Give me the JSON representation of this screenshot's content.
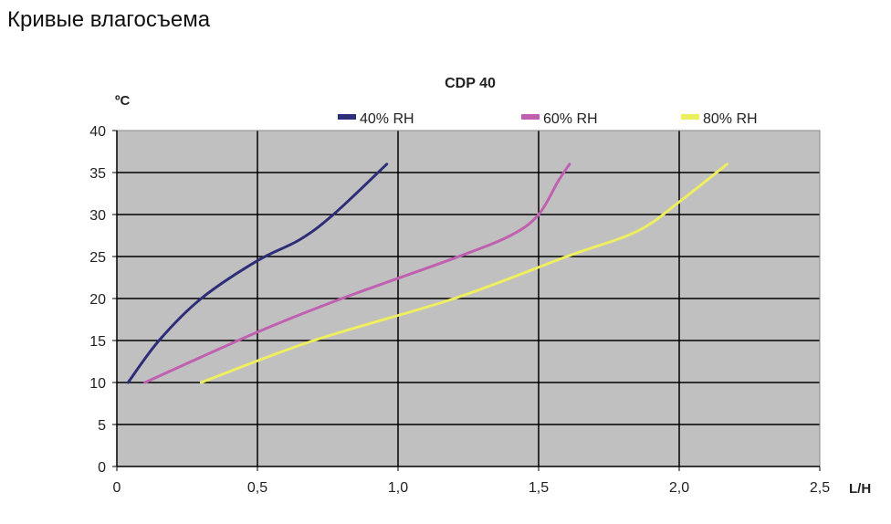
{
  "page": {
    "heading": "Кривые влагосъема"
  },
  "chart_data": {
    "type": "line",
    "title": "CDP 40",
    "xlabel": "L/H",
    "ylabel": "ºC",
    "xlim": [
      0,
      2.5
    ],
    "ylim": [
      0,
      40
    ],
    "x_ticks": [
      "0",
      "0,5",
      "1,0",
      "1,5",
      "2,0",
      "2,5"
    ],
    "x_tick_values": [
      0,
      0.5,
      1.0,
      1.5,
      2.0,
      2.5
    ],
    "y_ticks": [
      "0",
      "5",
      "10",
      "15",
      "20",
      "25",
      "30",
      "35",
      "40"
    ],
    "y_tick_values": [
      0,
      5,
      10,
      15,
      20,
      25,
      30,
      35,
      40
    ],
    "grid": true,
    "legend_position": "top",
    "plot_background": "#c0c0c0",
    "series": [
      {
        "name": "40% RH",
        "color": "#2e2e78",
        "x": [
          0.04,
          0.15,
          0.3,
          0.5,
          0.65,
          0.77,
          0.96
        ],
        "y": [
          10,
          15,
          20,
          24.5,
          27,
          30,
          36
        ]
      },
      {
        "name": "60% RH",
        "color": "#c060b0",
        "x": [
          0.1,
          0.5,
          0.8,
          1.2,
          1.4,
          1.5,
          1.57,
          1.61
        ],
        "y": [
          10,
          16,
          20,
          24.8,
          27.5,
          30,
          34,
          36
        ]
      },
      {
        "name": "80% RH",
        "color": "#eeee60",
        "x": [
          0.3,
          0.7,
          1.2,
          1.6,
          1.85,
          2.0,
          2.17
        ],
        "y": [
          10,
          15,
          20,
          25,
          28,
          31.5,
          36
        ]
      }
    ]
  }
}
